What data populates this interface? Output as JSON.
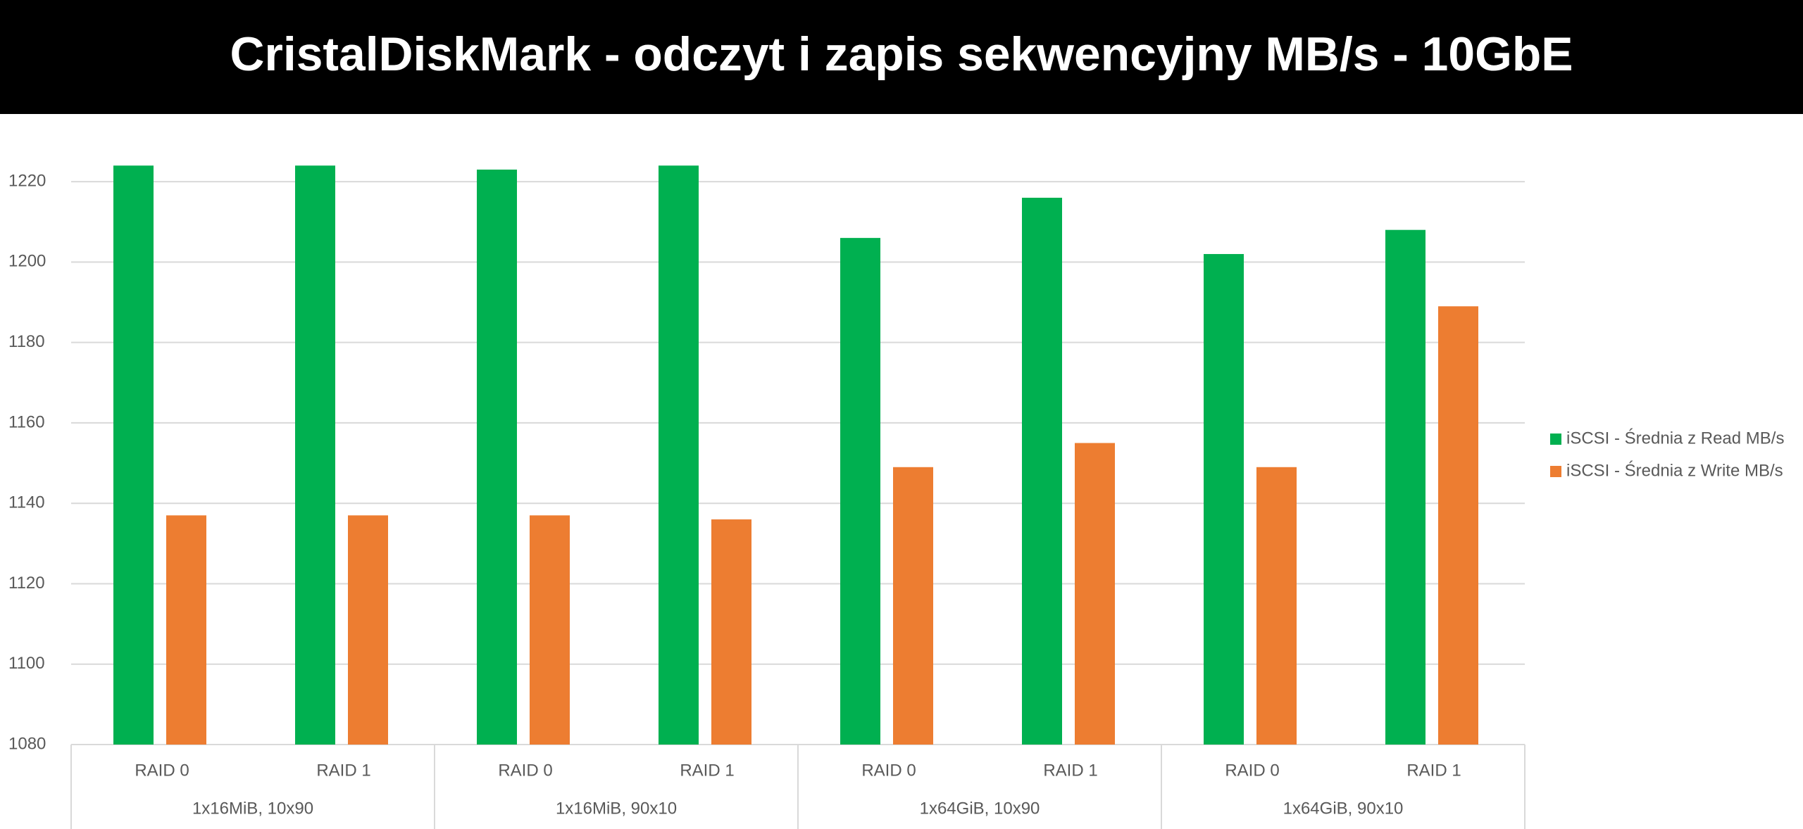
{
  "chart_data": {
    "type": "bar",
    "title": "CristalDiskMark - odczyt i zapis sekwencyjny MB/s - 10GbE",
    "categories": [
      "RAID 0",
      "RAID 1",
      "RAID 0",
      "RAID 1",
      "RAID 0",
      "RAID 1",
      "RAID 0",
      "RAID 1"
    ],
    "groups": [
      "1x16MiB, 10x90",
      "1x16MiB, 90x10",
      "1x64GiB, 10x90",
      "1x64GiB, 90x10"
    ],
    "series": [
      {
        "name": "iSCSI - Średnia z Read MB/s",
        "color": "#00b050",
        "values": [
          1224,
          1224,
          1223,
          1224,
          1206,
          1216,
          1202,
          1208
        ]
      },
      {
        "name": "iSCSI - Średnia z Write MB/s",
        "color": "#ed7d31",
        "values": [
          1137,
          1137,
          1137,
          1136,
          1149,
          1155,
          1149,
          1189
        ]
      }
    ],
    "ylim": [
      1080,
      1230
    ],
    "yticks": [
      1080,
      1100,
      1120,
      1140,
      1160,
      1180,
      1200,
      1220
    ],
    "grid": true,
    "legend": "right"
  }
}
